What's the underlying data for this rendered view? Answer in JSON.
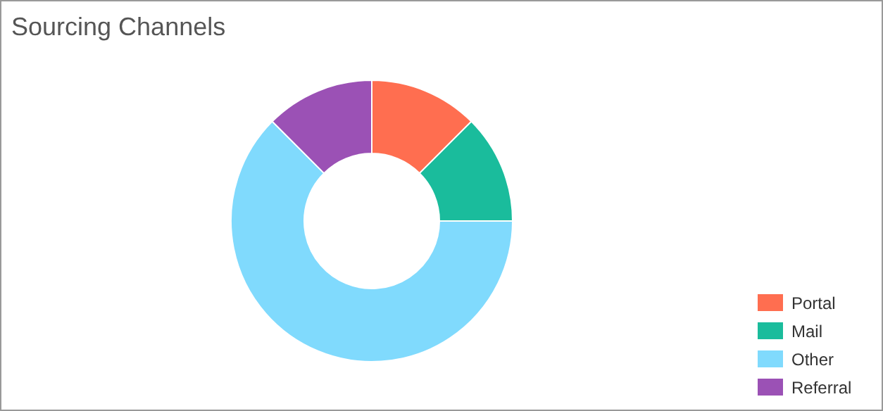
{
  "chart_data": {
    "type": "donut",
    "title": "Sourcing Channels",
    "categories": [
      "Portal",
      "Mail",
      "Other",
      "Referral"
    ],
    "values": [
      12.5,
      12.5,
      62.5,
      12.5
    ],
    "colors": [
      "#ff6e50",
      "#1abc9c",
      "#80dafd",
      "#9b51b5"
    ],
    "legend": "bottom right"
  }
}
